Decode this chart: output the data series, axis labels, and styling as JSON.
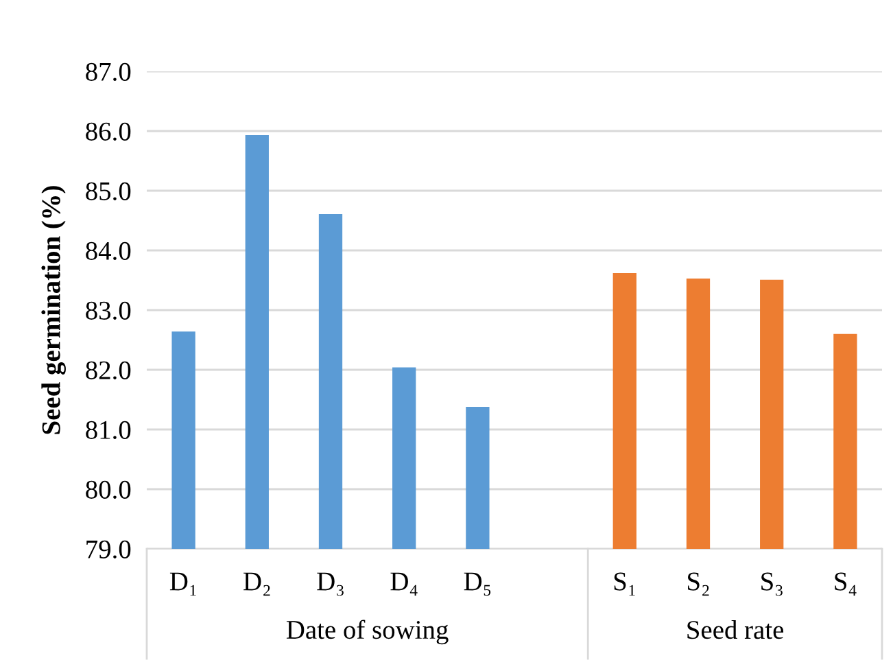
{
  "chart_data": {
    "type": "bar",
    "ylabel": "Seed germination (%)",
    "categories": [
      "D₁",
      "D₂",
      "D₃",
      "D₄",
      "D₅",
      null,
      "S₁",
      "S₂",
      "S₃",
      "S₄"
    ],
    "values": [
      82.64,
      85.93,
      84.61,
      82.04,
      81.38,
      null,
      83.62,
      83.53,
      83.51,
      82.6
    ],
    "colors": [
      "#5b9bd5",
      "#5b9bd5",
      "#5b9bd5",
      "#5b9bd5",
      "#5b9bd5",
      null,
      "#ed7d31",
      "#ed7d31",
      "#ed7d31",
      "#ed7d31"
    ],
    "ylim": [
      79,
      87
    ],
    "yticks": [
      {
        "value": 79,
        "label": "79.0"
      },
      {
        "value": 80,
        "label": "80.0"
      },
      {
        "value": 81,
        "label": "81.0"
      },
      {
        "value": 82,
        "label": "82.0"
      },
      {
        "value": 83,
        "label": "83.0"
      },
      {
        "value": 84,
        "label": "84.0"
      },
      {
        "value": 85,
        "label": "85.0"
      },
      {
        "value": 86,
        "label": "86.0"
      },
      {
        "value": 87,
        "label": "87.0"
      }
    ],
    "grid": "y",
    "annotations": [
      "Date of sowing",
      "Seed rate"
    ]
  }
}
